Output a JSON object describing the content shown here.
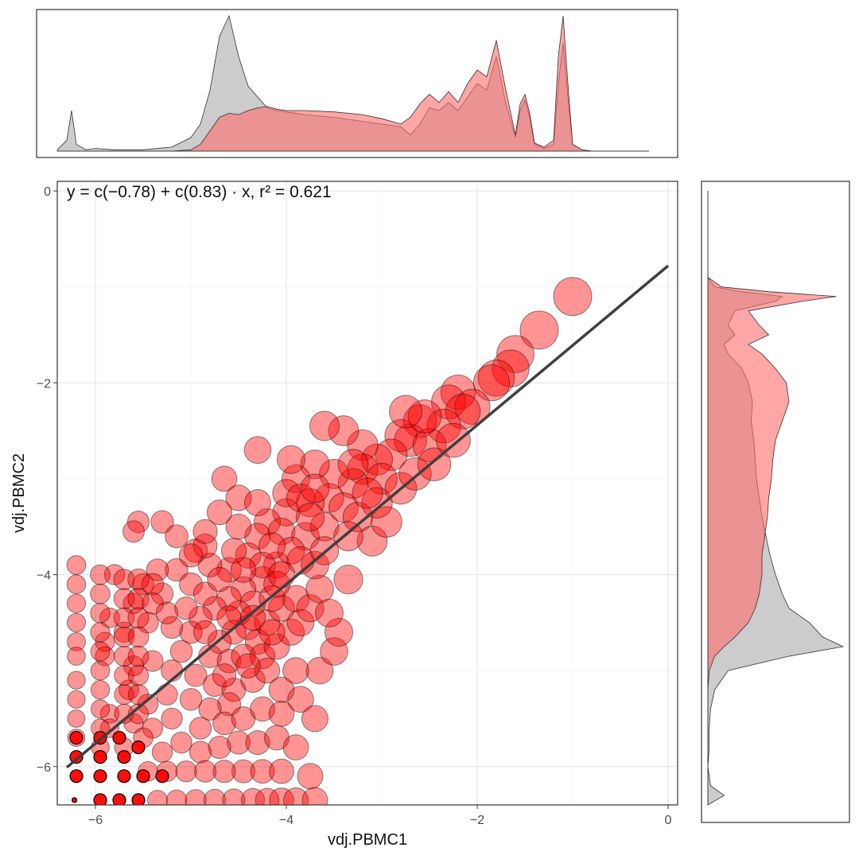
{
  "chart_data": {
    "type": "scatter",
    "title": "",
    "xlabel": "vdj.PBMC1",
    "ylabel": "vdj.PBMC2",
    "xlim": [
      -6.4,
      0.1
    ],
    "ylim": [
      -6.4,
      0.1
    ],
    "x_ticks": [
      -6,
      -4,
      -2,
      0
    ],
    "y_ticks": [
      -6,
      -4,
      -2,
      0
    ],
    "x_tick_labels": [
      "−6",
      "−4",
      "−2",
      "0"
    ],
    "y_tick_labels": [
      "−6",
      "−4",
      "−2",
      "0"
    ],
    "grid": true,
    "annotation": {
      "equation_text": "y = c(−0.78) + c(0.83) · x,  r² = 0.621",
      "intercept": -0.78,
      "slope": 0.83,
      "r2": 0.621,
      "position": "top-left"
    },
    "regression_line": {
      "x_start": -6.3,
      "x_end": 0.0,
      "color": "#3f3f3f"
    },
    "point_fill": "#ff0000",
    "point_edge": "#000000",
    "gray_fill": "#bfbfbf",
    "pink_fill": "#ff6b6b",
    "points": [
      [
        -1.0,
        -1.1
      ],
      [
        -1.35,
        -1.45
      ],
      [
        -1.6,
        -1.7
      ],
      [
        -1.65,
        -1.85
      ],
      [
        -1.8,
        -1.95
      ],
      [
        -1.85,
        -2.0
      ],
      [
        -2.2,
        -2.1
      ],
      [
        -2.3,
        -2.2
      ],
      [
        -2.05,
        -2.25
      ],
      [
        -2.15,
        -2.3
      ],
      [
        -2.35,
        -2.45
      ],
      [
        -2.6,
        -2.4
      ],
      [
        -2.7,
        -2.6
      ],
      [
        -2.8,
        -2.55
      ],
      [
        -2.5,
        -2.65
      ],
      [
        -2.9,
        -2.75
      ],
      [
        -3.05,
        -2.8
      ],
      [
        -3.2,
        -2.65
      ],
      [
        -3.4,
        -2.5
      ],
      [
        -3.6,
        -2.45
      ],
      [
        -3.2,
        -2.9
      ],
      [
        -3.0,
        -3.0
      ],
      [
        -3.3,
        -3.05
      ],
      [
        -3.5,
        -2.95
      ],
      [
        -3.7,
        -2.85
      ],
      [
        -3.9,
        -3.0
      ],
      [
        -3.55,
        -3.2
      ],
      [
        -3.75,
        -3.25
      ],
      [
        -4.0,
        -3.35
      ],
      [
        -4.2,
        -3.45
      ],
      [
        -3.95,
        -2.8
      ],
      [
        -4.3,
        -3.6
      ],
      [
        -4.5,
        -3.5
      ],
      [
        -4.65,
        -3.0
      ],
      [
        -4.05,
        -3.55
      ],
      [
        -3.8,
        -3.6
      ],
      [
        -3.6,
        -3.5
      ],
      [
        -3.4,
        -3.3
      ],
      [
        -3.25,
        -3.4
      ],
      [
        -4.4,
        -3.8
      ],
      [
        -4.6,
        -3.95
      ],
      [
        -4.8,
        -3.9
      ],
      [
        -4.95,
        -3.75
      ],
      [
        -5.15,
        -3.95
      ],
      [
        -5.35,
        -3.95
      ],
      [
        -5.55,
        -3.45
      ],
      [
        -5.6,
        -3.55
      ],
      [
        -5.3,
        -3.45
      ],
      [
        -5.15,
        -3.6
      ],
      [
        -4.85,
        -3.7
      ],
      [
        -4.1,
        -3.9
      ],
      [
        -4.25,
        -4.05
      ],
      [
        -4.45,
        -4.15
      ],
      [
        -4.35,
        -4.3
      ],
      [
        -4.5,
        -4.4
      ],
      [
        -4.4,
        -4.55
      ],
      [
        -4.55,
        -4.6
      ],
      [
        -4.3,
        -4.7
      ],
      [
        -4.2,
        -4.5
      ],
      [
        -4.05,
        -4.35
      ],
      [
        -3.9,
        -4.25
      ],
      [
        -4.15,
        -4.25
      ],
      [
        -4.6,
        -4.25
      ],
      [
        -4.75,
        -4.35
      ],
      [
        -4.9,
        -4.45
      ],
      [
        -5.0,
        -4.6
      ],
      [
        -5.2,
        -4.55
      ],
      [
        -5.45,
        -4.5
      ],
      [
        -5.7,
        -4.6
      ],
      [
        -5.85,
        -4.45
      ],
      [
        -4.7,
        -4.7
      ],
      [
        -4.8,
        -4.85
      ],
      [
        -4.6,
        -4.9
      ],
      [
        -4.45,
        -4.85
      ],
      [
        -4.25,
        -4.85
      ],
      [
        -4.1,
        -4.75
      ],
      [
        -3.95,
        -4.6
      ],
      [
        -3.85,
        -4.5
      ],
      [
        -3.75,
        -4.35
      ],
      [
        -3.65,
        -4.15
      ],
      [
        -5.0,
        -4.1
      ],
      [
        -5.3,
        -4.2
      ],
      [
        -5.5,
        -4.1
      ],
      [
        -5.8,
        -4.0
      ],
      [
        -5.6,
        -4.3
      ],
      [
        -5.9,
        -4.7
      ],
      [
        -5.9,
        -4.85
      ],
      [
        -5.6,
        -4.95
      ],
      [
        -5.4,
        -4.9
      ],
      [
        -5.2,
        -5.0
      ],
      [
        -4.95,
        -5.05
      ],
      [
        -4.75,
        -5.15
      ],
      [
        -4.55,
        -5.2
      ],
      [
        -4.35,
        -5.1
      ],
      [
        -4.2,
        -5.0
      ],
      [
        -4.05,
        -5.2
      ],
      [
        -3.9,
        -5.0
      ],
      [
        -4.6,
        -5.35
      ],
      [
        -4.8,
        -5.4
      ],
      [
        -5.0,
        -5.3
      ],
      [
        -5.25,
        -5.25
      ],
      [
        -5.45,
        -5.35
      ],
      [
        -5.65,
        -5.2
      ],
      [
        -5.85,
        -5.45
      ],
      [
        -5.85,
        -5.6
      ],
      [
        -5.6,
        -5.55
      ],
      [
        -5.4,
        -5.6
      ],
      [
        -5.2,
        -5.5
      ],
      [
        -4.9,
        -5.6
      ],
      [
        -4.65,
        -5.55
      ],
      [
        -4.45,
        -5.5
      ],
      [
        -4.25,
        -5.4
      ],
      [
        -4.05,
        -5.45
      ],
      [
        -3.85,
        -5.3
      ],
      [
        -3.65,
        -5.0
      ],
      [
        -3.5,
        -4.8
      ],
      [
        -3.45,
        -4.6
      ],
      [
        -3.55,
        -4.4
      ],
      [
        -3.7,
        -3.9
      ],
      [
        -3.35,
        -4.05
      ],
      [
        -3.1,
        -3.65
      ],
      [
        -2.95,
        -3.45
      ],
      [
        -3.05,
        -3.25
      ],
      [
        -2.8,
        -3.1
      ],
      [
        -2.65,
        -2.95
      ],
      [
        -2.45,
        -2.85
      ],
      [
        -2.25,
        -2.6
      ],
      [
        -2.55,
        -2.35
      ],
      [
        -2.75,
        -2.3
      ],
      [
        -3.35,
        -3.6
      ],
      [
        -4.5,
        -5.75
      ],
      [
        -4.7,
        -5.8
      ],
      [
        -4.9,
        -5.85
      ],
      [
        -5.1,
        -5.75
      ],
      [
        -5.3,
        -5.85
      ],
      [
        -5.5,
        -5.7
      ],
      [
        -5.7,
        -5.8
      ],
      [
        -4.3,
        -5.75
      ],
      [
        -4.1,
        -5.7
      ],
      [
        -3.9,
        -5.8
      ],
      [
        -4.45,
        -6.05
      ],
      [
        -4.65,
        -6.05
      ],
      [
        -4.85,
        -6.05
      ],
      [
        -5.05,
        -6.05
      ],
      [
        -5.25,
        -6.05
      ],
      [
        -5.45,
        -6.05
      ],
      [
        -3.75,
        -6.1
      ],
      [
        -4.25,
        -6.05
      ],
      [
        -4.05,
        -6.05
      ],
      [
        -3.7,
        -5.5
      ],
      [
        -4.95,
        -6.35
      ],
      [
        -4.75,
        -6.35
      ],
      [
        -4.55,
        -6.35
      ],
      [
        -4.35,
        -6.35
      ],
      [
        -4.2,
        -6.35
      ],
      [
        -4.05,
        -6.35
      ],
      [
        -3.9,
        -6.35
      ],
      [
        -3.7,
        -6.35
      ],
      [
        -5.15,
        -6.35
      ],
      [
        -5.35,
        -6.35
      ],
      [
        -6.2,
        -3.9
      ],
      [
        -6.2,
        -4.1
      ],
      [
        -6.2,
        -4.3
      ],
      [
        -6.2,
        -4.5
      ],
      [
        -6.2,
        -4.7
      ],
      [
        -6.2,
        -4.85
      ],
      [
        -6.2,
        -5.1
      ],
      [
        -6.2,
        -5.3
      ],
      [
        -6.2,
        -5.5
      ],
      [
        -6.2,
        -5.7
      ],
      [
        -5.95,
        -4.0
      ],
      [
        -5.95,
        -4.2
      ],
      [
        -5.95,
        -4.4
      ],
      [
        -5.95,
        -4.6
      ],
      [
        -5.95,
        -4.8
      ],
      [
        -5.95,
        -5.0
      ],
      [
        -5.95,
        -5.2
      ],
      [
        -5.95,
        -5.4
      ],
      [
        -5.95,
        -5.6
      ],
      [
        -5.95,
        -5.8
      ],
      [
        -5.7,
        -4.05
      ],
      [
        -5.7,
        -4.25
      ],
      [
        -5.7,
        -4.45
      ],
      [
        -5.7,
        -4.65
      ],
      [
        -5.7,
        -4.85
      ],
      [
        -5.7,
        -5.05
      ],
      [
        -5.7,
        -5.25
      ],
      [
        -5.7,
        -5.45
      ],
      [
        -5.55,
        -4.05
      ],
      [
        -5.55,
        -4.25
      ],
      [
        -5.55,
        -4.45
      ],
      [
        -5.55,
        -4.65
      ],
      [
        -5.55,
        -4.85
      ],
      [
        -5.55,
        -5.05
      ],
      [
        -5.55,
        -5.25
      ],
      [
        -5.55,
        -5.45
      ],
      [
        -5.4,
        -4.1
      ],
      [
        -5.4,
        -4.3
      ],
      [
        -5.25,
        -4.4
      ],
      [
        -5.1,
        -4.8
      ],
      [
        -4.0,
        -3.15
      ],
      [
        -3.85,
        -3.2
      ],
      [
        -3.7,
        -3.1
      ],
      [
        -3.15,
        -3.15
      ],
      [
        -3.3,
        -2.85
      ],
      [
        -4.3,
        -2.7
      ],
      [
        -4.5,
        -3.2
      ],
      [
        -4.7,
        -3.35
      ],
      [
        -3.75,
        -3.4
      ],
      [
        -3.95,
        -3.75
      ],
      [
        -4.85,
        -4.2
      ],
      [
        -5.05,
        -4.35
      ],
      [
        -4.6,
        -4.45
      ],
      [
        -4.35,
        -4.45
      ],
      [
        -4.1,
        -4.1
      ],
      [
        -4.25,
        -3.9
      ],
      [
        -4.45,
        -3.95
      ],
      [
        -4.7,
        -4.05
      ],
      [
        -4.55,
        -3.75
      ],
      [
        -4.3,
        -3.25
      ],
      [
        -4.85,
        -3.55
      ],
      [
        -5.0,
        -3.8
      ],
      [
        -4.15,
        -3.7
      ],
      [
        -3.85,
        -3.85
      ],
      [
        -3.6,
        -3.75
      ],
      [
        -4.05,
        -4.0
      ],
      [
        -4.15,
        -4.6
      ],
      [
        -4.4,
        -4.95
      ],
      [
        -4.65,
        -5.05
      ],
      [
        -4.85,
        -4.6
      ]
    ],
    "small_points": [
      [
        -6.2,
        -5.9
      ],
      [
        -5.95,
        -5.9
      ],
      [
        -5.7,
        -5.9
      ],
      [
        -6.2,
        -6.1
      ],
      [
        -5.95,
        -6.1
      ],
      [
        -5.7,
        -6.1
      ],
      [
        -5.5,
        -6.1
      ],
      [
        -5.3,
        -6.1
      ],
      [
        -5.95,
        -6.35
      ],
      [
        -5.75,
        -6.35
      ],
      [
        -5.55,
        -6.35
      ],
      [
        -6.22,
        -6.35
      ],
      [
        -6.2,
        -5.7
      ],
      [
        -5.95,
        -5.7
      ],
      [
        -5.75,
        -5.7
      ],
      [
        -5.55,
        -5.8
      ]
    ],
    "top_density": {
      "x_range": [
        -6.4,
        -0.2
      ],
      "x": [
        -6.4,
        -6.3,
        -6.25,
        -6.2,
        -6.1,
        -6.0,
        -5.8,
        -5.5,
        -5.2,
        -5.0,
        -4.9,
        -4.8,
        -4.7,
        -4.6,
        -4.5,
        -4.4,
        -4.3,
        -4.2,
        -4.1,
        -4.0,
        -3.8,
        -3.5,
        -3.2,
        -3.0,
        -2.8,
        -2.7,
        -2.6,
        -2.5,
        -2.4,
        -2.3,
        -2.2,
        -2.1,
        -2.0,
        -1.9,
        -1.8,
        -1.7,
        -1.6,
        -1.55,
        -1.5,
        -1.45,
        -1.4,
        -1.3,
        -1.2,
        -1.15,
        -1.1,
        -1.05,
        -1.0,
        -0.9,
        -0.8,
        -0.5,
        -0.2
      ],
      "gray": [
        0.01,
        0.08,
        0.3,
        0.05,
        0.01,
        0.02,
        0.01,
        0.01,
        0.03,
        0.1,
        0.2,
        0.45,
        0.85,
        1.0,
        0.7,
        0.48,
        0.4,
        0.32,
        0.3,
        0.29,
        0.27,
        0.25,
        0.22,
        0.2,
        0.18,
        0.12,
        0.2,
        0.32,
        0.3,
        0.36,
        0.3,
        0.4,
        0.5,
        0.45,
        0.7,
        0.35,
        0.1,
        0.3,
        0.38,
        0.25,
        0.05,
        0.02,
        0.05,
        0.5,
        0.8,
        0.4,
        0.05,
        0.01,
        0.0,
        0.0,
        0.0
      ],
      "pink": [
        0.0,
        0.0,
        0.0,
        0.0,
        0.0,
        0.0,
        0.0,
        0.0,
        0.0,
        0.01,
        0.05,
        0.15,
        0.25,
        0.28,
        0.27,
        0.3,
        0.32,
        0.33,
        0.31,
        0.3,
        0.3,
        0.29,
        0.27,
        0.24,
        0.2,
        0.25,
        0.35,
        0.42,
        0.36,
        0.44,
        0.36,
        0.5,
        0.6,
        0.55,
        0.82,
        0.45,
        0.12,
        0.35,
        0.42,
        0.28,
        0.06,
        0.03,
        0.08,
        0.7,
        1.0,
        0.5,
        0.05,
        0.01,
        0.0,
        0.0,
        0.0
      ]
    },
    "right_density": {
      "y_range": [
        -6.4,
        0.0
      ],
      "y": [
        0.0,
        -0.5,
        -0.9,
        -1.0,
        -1.05,
        -1.1,
        -1.15,
        -1.25,
        -1.4,
        -1.5,
        -1.6,
        -1.7,
        -1.85,
        -2.0,
        -2.2,
        -2.4,
        -2.6,
        -2.8,
        -3.0,
        -3.2,
        -3.4,
        -3.6,
        -3.8,
        -4.0,
        -4.2,
        -4.35,
        -4.5,
        -4.65,
        -4.75,
        -4.85,
        -5.0,
        -5.2,
        -5.4,
        -5.6,
        -5.8,
        -6.0,
        -6.1,
        -6.2,
        -6.3,
        -6.4
      ],
      "gray": [
        0.0,
        0.0,
        0.0,
        0.05,
        0.25,
        0.55,
        0.5,
        0.2,
        0.15,
        0.2,
        0.12,
        0.15,
        0.25,
        0.3,
        0.33,
        0.32,
        0.34,
        0.35,
        0.36,
        0.38,
        0.4,
        0.43,
        0.46,
        0.5,
        0.55,
        0.6,
        0.75,
        0.85,
        1.0,
        0.6,
        0.15,
        0.05,
        0.02,
        0.01,
        0.01,
        0.0,
        0.01,
        0.02,
        0.12,
        0.0
      ],
      "pink": [
        0.0,
        0.0,
        0.0,
        0.1,
        0.45,
        0.95,
        0.7,
        0.3,
        0.38,
        0.45,
        0.3,
        0.4,
        0.5,
        0.58,
        0.6,
        0.55,
        0.5,
        0.48,
        0.47,
        0.45,
        0.44,
        0.42,
        0.4,
        0.4,
        0.38,
        0.35,
        0.3,
        0.2,
        0.12,
        0.05,
        0.01,
        0.0,
        0.0,
        0.0,
        0.0,
        0.0,
        0.0,
        0.0,
        0.0,
        0.0
      ]
    }
  }
}
